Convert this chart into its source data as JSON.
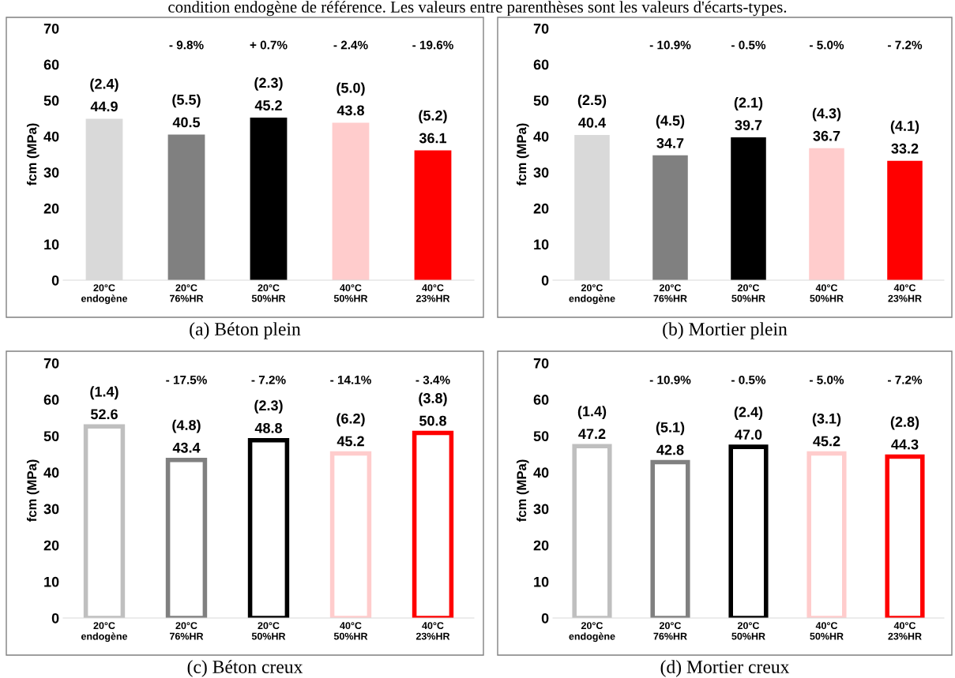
{
  "chart_data": [
    {
      "type": "bar",
      "title": "(a) Béton plein",
      "ylabel": "fcm (MPa)",
      "categories": [
        "20°C\nendogène",
        "20°C\n76%HR",
        "20°C\n50%HR",
        "40°C\n50%HR",
        "40°C\n23%HR"
      ],
      "values": [
        44.9,
        40.5,
        45.2,
        43.8,
        36.1
      ],
      "value_labels": [
        "(2.4)\n44.9",
        "(5.5)\n40.5",
        "(2.3)\n45.2",
        "(5.0)\n43.8",
        "(5.2)\n36.1"
      ],
      "colors": [
        "#d9d9d9",
        "#808080",
        "#000000",
        "#ffcccc",
        "#ff0000"
      ],
      "ylim": [
        0,
        70
      ],
      "yticks": [
        0,
        10,
        20,
        30,
        40,
        50,
        60,
        70
      ],
      "grid": false,
      "annotations": [
        "- 9.8%",
        "+ 0.7%",
        "- 2.4%",
        "- 19.6%",
        "condition endogène de référence. Les valeurs entre parenthèses sont les valeurs d'écarts-types."
      ]
    },
    {
      "type": "bar",
      "title": "(b) Mortier plein",
      "ylabel": "fcm (MPa)",
      "categories": [
        "20°C\nendogène",
        "20°C\n76%HR",
        "20°C\n50%HR",
        "40°C\n50%HR",
        "40°C\n23%HR"
      ],
      "values": [
        40.4,
        34.7,
        39.7,
        36.7,
        33.2
      ],
      "value_labels": [
        "(2.5)\n40.4",
        "(4.5)\n34.7",
        "(2.1)\n39.7",
        "(4.3)\n36.7",
        "(4.1)\n33.2"
      ],
      "colors": [
        "#d9d9d9",
        "#808080",
        "#000000",
        "#ffcccc",
        "#ff0000"
      ],
      "ylim": [
        0,
        70
      ],
      "yticks": [
        0,
        10,
        20,
        30,
        40,
        50,
        60,
        70
      ],
      "grid": false,
      "annotations": [
        "- 10.9%",
        "- 0.5%",
        "- 5.0%",
        "- 7.2%"
      ]
    },
    {
      "type": "bar",
      "title": "(c) Béton creux",
      "ylabel": "fcm (MPa)",
      "line_style": "solid",
      "categories": [
        "20°C\nendogène",
        "20°C\n76%HR",
        "20°C\n50%HR",
        "40°C\n50%HR",
        "40°C\n23%HR"
      ],
      "values": [
        52.6,
        43.4,
        48.8,
        45.2,
        50.8
      ],
      "value_labels": [
        "(1.4)\n52.6",
        "(4.8)\n43.4",
        "(2.3)\n48.8",
        "(6.2)\n45.2",
        "(3.8)\n50.8"
      ],
      "colors": [
        "#bfbfbf",
        "#808080",
        "#000000",
        "#ffcccc",
        "#ff0000"
      ],
      "ylim": [
        0,
        70
      ],
      "yticks": [
        0,
        10,
        20,
        30,
        40,
        50,
        60,
        70
      ],
      "grid": false,
      "annotations": [
        "- 17.5%",
        "- 7.2%",
        "- 14.1%",
        "- 3.4%"
      ]
    },
    {
      "type": "bar",
      "title": "(d) Mortier creux",
      "ylabel": "fcm (MPa)",
      "line_style": "solid",
      "categories": [
        "20°C\nendogène",
        "20°C\n76%HR",
        "20°C\n50%HR",
        "40°C\n50%HR",
        "40°C\n23%HR"
      ],
      "values": [
        47.2,
        42.8,
        47.0,
        45.2,
        44.3
      ],
      "value_labels": [
        "(1.4)\n47.2",
        "(5.1)\n42.8",
        "(2.4)\n47.0",
        "(3.1)\n45.2",
        "(2.8)\n44.3"
      ],
      "colors": [
        "#bfbfbf",
        "#808080",
        "#000000",
        "#ffcccc",
        "#ff0000"
      ],
      "ylim": [
        0,
        70
      ],
      "yticks": [
        0,
        10,
        20,
        30,
        40,
        50,
        60,
        70
      ],
      "grid": false,
      "annotations": [
        "- 10.9%",
        "- 0.5%",
        "- 5.0%",
        "- 7.2%"
      ]
    }
  ]
}
